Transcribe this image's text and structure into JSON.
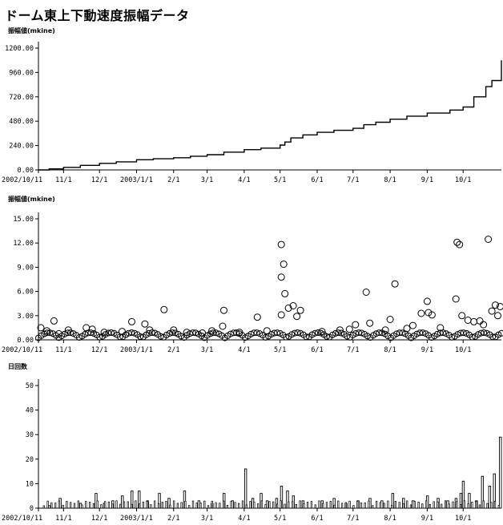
{
  "title": "ドーム東上下動速度振幅データ",
  "x_axis": {
    "ticks": [
      {
        "date": "2002-10-11",
        "label": "2002/10/11"
      },
      {
        "date": "2002-11-01",
        "label": "11/1"
      },
      {
        "date": "2002-12-01",
        "label": "12/1"
      },
      {
        "date": "2003-01-01",
        "label": "2003/1/1"
      },
      {
        "date": "2003-02-01",
        "label": "2/1"
      },
      {
        "date": "2003-03-01",
        "label": "3/1"
      },
      {
        "date": "2003-04-01",
        "label": "4/1"
      },
      {
        "date": "2003-05-01",
        "label": "5/1"
      },
      {
        "date": "2003-06-01",
        "label": "6/1"
      },
      {
        "date": "2003-07-01",
        "label": "7/1"
      },
      {
        "date": "2003-08-01",
        "label": "8/1"
      },
      {
        "date": "2003-09-01",
        "label": "9/1"
      },
      {
        "date": "2003-10-01",
        "label": "10/1"
      }
    ],
    "range": [
      "2002-10-11",
      "2003-11-02"
    ]
  },
  "chart_data": [
    {
      "type": "line",
      "ylabel": "振幅値(mkine)",
      "ylim": [
        0,
        1200
      ],
      "yticks": [
        "0.00",
        "240.00",
        "480.00",
        "720.00",
        "960.00",
        "1200.00"
      ],
      "x": [
        "2002-10-11",
        "2002-10-20",
        "2002-11-01",
        "2002-11-15",
        "2002-12-01",
        "2002-12-15",
        "2003-01-01",
        "2003-01-15",
        "2003-02-01",
        "2003-02-15",
        "2003-03-01",
        "2003-03-15",
        "2003-04-01",
        "2003-04-15",
        "2003-05-01",
        "2003-05-05",
        "2003-05-10",
        "2003-05-20",
        "2003-06-01",
        "2003-06-15",
        "2003-07-01",
        "2003-07-10",
        "2003-07-20",
        "2003-08-01",
        "2003-08-15",
        "2003-09-01",
        "2003-09-20",
        "2003-10-01",
        "2003-10-10",
        "2003-10-20",
        "2003-10-25",
        "2003-11-02"
      ],
      "values": [
        0,
        10,
        25,
        45,
        65,
        80,
        100,
        110,
        120,
        135,
        150,
        175,
        200,
        215,
        245,
        275,
        315,
        345,
        370,
        390,
        410,
        445,
        470,
        500,
        530,
        560,
        590,
        620,
        720,
        820,
        880,
        1080
      ]
    },
    {
      "type": "scatter",
      "ylabel": "振幅値(mkine)",
      "ylim": [
        0,
        16
      ],
      "yticks": [
        "0.00",
        "3.00",
        "6.00",
        "9.00",
        "12.00",
        "15.00"
      ],
      "points": [
        {
          "x": "2002-10-13",
          "y": 1.6
        },
        {
          "x": "2002-10-18",
          "y": 1.2
        },
        {
          "x": "2002-10-24",
          "y": 2.5
        },
        {
          "x": "2002-10-28",
          "y": 0.8
        },
        {
          "x": "2002-11-05",
          "y": 1.3
        },
        {
          "x": "2002-11-20",
          "y": 1.6
        },
        {
          "x": "2002-11-25",
          "y": 1.4
        },
        {
          "x": "2002-12-05",
          "y": 1.0
        },
        {
          "x": "2002-12-20",
          "y": 1.1
        },
        {
          "x": "2002-12-28",
          "y": 2.4
        },
        {
          "x": "2003-01-08",
          "y": 2.1
        },
        {
          "x": "2003-01-12",
          "y": 1.3
        },
        {
          "x": "2003-01-24",
          "y": 4.0
        },
        {
          "x": "2003-02-01",
          "y": 1.3
        },
        {
          "x": "2003-02-12",
          "y": 1.0
        },
        {
          "x": "2003-02-25",
          "y": 0.9
        },
        {
          "x": "2003-03-05",
          "y": 1.2
        },
        {
          "x": "2003-03-14",
          "y": 1.8
        },
        {
          "x": "2003-03-15",
          "y": 3.9
        },
        {
          "x": "2003-03-28",
          "y": 1.0
        },
        {
          "x": "2003-04-12",
          "y": 3.0
        },
        {
          "x": "2003-04-20",
          "y": 1.2
        },
        {
          "x": "2003-05-02",
          "y": 12.6
        },
        {
          "x": "2003-05-02",
          "y": 8.3
        },
        {
          "x": "2003-05-02",
          "y": 3.3
        },
        {
          "x": "2003-05-04",
          "y": 10.0
        },
        {
          "x": "2003-05-05",
          "y": 6.1
        },
        {
          "x": "2003-05-08",
          "y": 4.2
        },
        {
          "x": "2003-05-12",
          "y": 4.5
        },
        {
          "x": "2003-05-15",
          "y": 3.1
        },
        {
          "x": "2003-05-18",
          "y": 3.9
        },
        {
          "x": "2003-06-05",
          "y": 1.1
        },
        {
          "x": "2003-06-20",
          "y": 1.3
        },
        {
          "x": "2003-07-03",
          "y": 2.0
        },
        {
          "x": "2003-07-12",
          "y": 6.3
        },
        {
          "x": "2003-07-15",
          "y": 2.2
        },
        {
          "x": "2003-07-28",
          "y": 1.3
        },
        {
          "x": "2003-08-01",
          "y": 2.7
        },
        {
          "x": "2003-08-05",
          "y": 7.4
        },
        {
          "x": "2003-08-15",
          "y": 1.5
        },
        {
          "x": "2003-08-20",
          "y": 1.9
        },
        {
          "x": "2003-08-27",
          "y": 3.5
        },
        {
          "x": "2003-09-01",
          "y": 5.1
        },
        {
          "x": "2003-09-02",
          "y": 3.6
        },
        {
          "x": "2003-09-05",
          "y": 3.3
        },
        {
          "x": "2003-09-12",
          "y": 1.6
        },
        {
          "x": "2003-09-25",
          "y": 5.4
        },
        {
          "x": "2003-09-26",
          "y": 12.9
        },
        {
          "x": "2003-09-28",
          "y": 12.6
        },
        {
          "x": "2003-09-30",
          "y": 3.2
        },
        {
          "x": "2003-10-05",
          "y": 2.6
        },
        {
          "x": "2003-10-10",
          "y": 2.4
        },
        {
          "x": "2003-10-15",
          "y": 2.5
        },
        {
          "x": "2003-10-22",
          "y": 13.3
        },
        {
          "x": "2003-10-25",
          "y": 3.8
        },
        {
          "x": "2003-10-28",
          "y": 4.6
        },
        {
          "x": "2003-10-30",
          "y": 3.2
        },
        {
          "x": "2003-11-01",
          "y": 4.4
        },
        {
          "x": "2003-10-18",
          "y": 2.0
        },
        {
          "x": "2003-06-28",
          "y": 1.4
        }
      ]
    },
    {
      "type": "bar",
      "ylabel": "日回数",
      "ylim": [
        0,
        50
      ],
      "yticks": [
        "0",
        "10",
        "20",
        "30",
        "40",
        "50"
      ],
      "bars": [
        {
          "x": "2002-10-20",
          "y": 1
        },
        {
          "x": "2002-10-29",
          "y": 4
        },
        {
          "x": "2002-11-15",
          "y": 2
        },
        {
          "x": "2002-11-28",
          "y": 6
        },
        {
          "x": "2002-12-05",
          "y": 2
        },
        {
          "x": "2002-12-12",
          "y": 3
        },
        {
          "x": "2002-12-20",
          "y": 5
        },
        {
          "x": "2002-12-28",
          "y": 7
        },
        {
          "x": "2003-01-03",
          "y": 7
        },
        {
          "x": "2003-01-10",
          "y": 3
        },
        {
          "x": "2003-01-20",
          "y": 6
        },
        {
          "x": "2003-01-28",
          "y": 4
        },
        {
          "x": "2003-02-10",
          "y": 7
        },
        {
          "x": "2003-02-22",
          "y": 3
        },
        {
          "x": "2003-03-05",
          "y": 2
        },
        {
          "x": "2003-03-15",
          "y": 6
        },
        {
          "x": "2003-03-22",
          "y": 3
        },
        {
          "x": "2003-04-02",
          "y": 16
        },
        {
          "x": "2003-04-08",
          "y": 4
        },
        {
          "x": "2003-04-15",
          "y": 6
        },
        {
          "x": "2003-04-20",
          "y": 3
        },
        {
          "x": "2003-04-28",
          "y": 4
        },
        {
          "x": "2003-05-02",
          "y": 9
        },
        {
          "x": "2003-05-07",
          "y": 7
        },
        {
          "x": "2003-05-12",
          "y": 5
        },
        {
          "x": "2003-05-20",
          "y": 3
        },
        {
          "x": "2003-06-05",
          "y": 3
        },
        {
          "x": "2003-06-15",
          "y": 4
        },
        {
          "x": "2003-06-25",
          "y": 2
        },
        {
          "x": "2003-07-05",
          "y": 3
        },
        {
          "x": "2003-07-15",
          "y": 4
        },
        {
          "x": "2003-07-25",
          "y": 3
        },
        {
          "x": "2003-08-03",
          "y": 6
        },
        {
          "x": "2003-08-12",
          "y": 4
        },
        {
          "x": "2003-08-20",
          "y": 3
        },
        {
          "x": "2003-09-01",
          "y": 5
        },
        {
          "x": "2003-09-10",
          "y": 4
        },
        {
          "x": "2003-09-18",
          "y": 3
        },
        {
          "x": "2003-09-25",
          "y": 4
        },
        {
          "x": "2003-09-29",
          "y": 6
        },
        {
          "x": "2003-10-01",
          "y": 11
        },
        {
          "x": "2003-10-06",
          "y": 6
        },
        {
          "x": "2003-10-12",
          "y": 3
        },
        {
          "x": "2003-10-17",
          "y": 13
        },
        {
          "x": "2003-10-23",
          "y": 9
        },
        {
          "x": "2003-10-27",
          "y": 14
        },
        {
          "x": "2003-11-01",
          "y": 29
        }
      ]
    }
  ]
}
